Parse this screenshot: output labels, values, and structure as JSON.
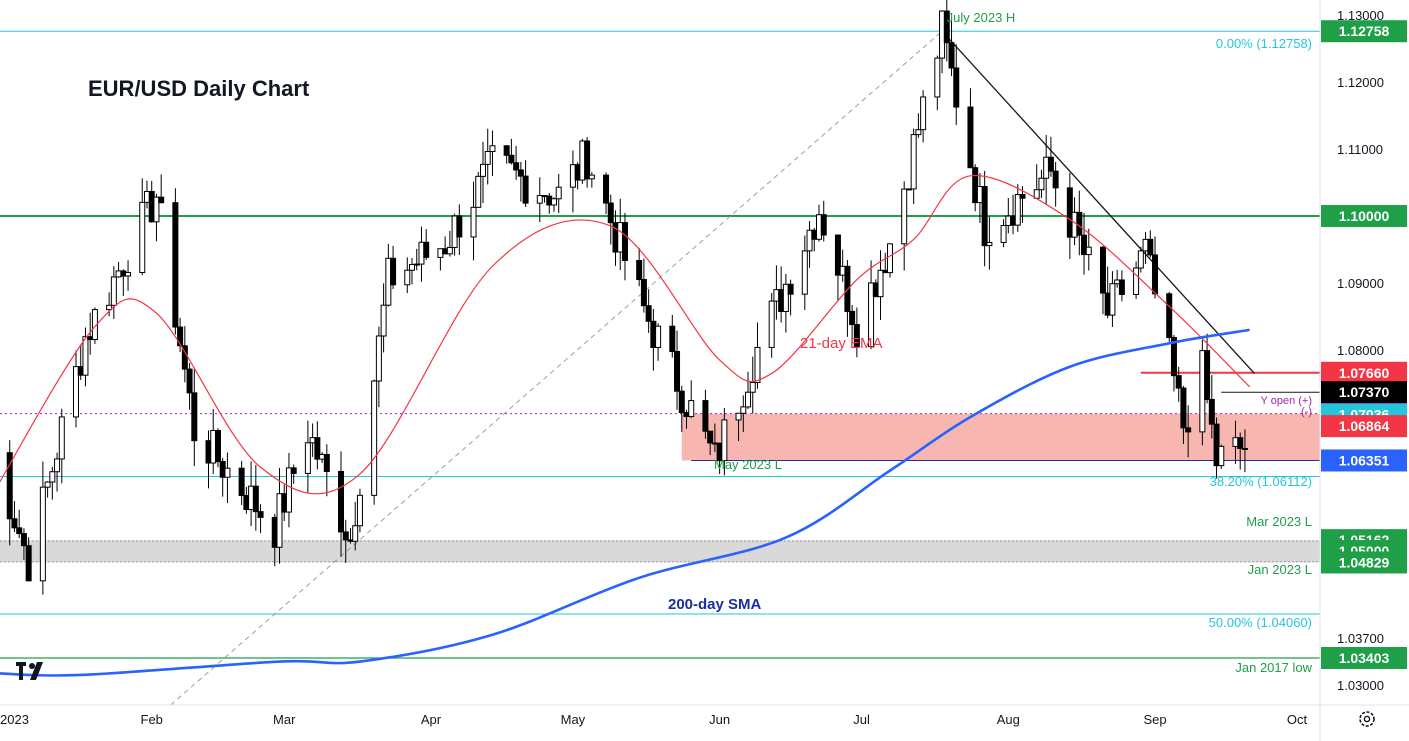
{
  "chart_data": {
    "type": "candlestick",
    "title": "EUR/USD Daily Chart",
    "y_range": [
      1.026,
      1.131
    ],
    "x_ticks": [
      "2023",
      "Feb",
      "Mar",
      "Apr",
      "May",
      "Jun",
      "Jul",
      "Aug",
      "Sep",
      "Oct"
    ],
    "x_start": "2022-12-29",
    "x_end": "2023-10-03",
    "y_ticks": [
      1.13,
      1.12,
      1.11,
      1.09,
      1.08,
      1.037,
      1.03
    ],
    "y_tick_labels": [
      "1.13000",
      "1.12000",
      "1.11000",
      "1.09000",
      "1.08000",
      "1.03700",
      "1.03000"
    ],
    "price_tags": [
      {
        "label": "1.12758",
        "value": 1.12758,
        "color": "#1e9f48"
      },
      {
        "label": "1.10000",
        "value": 1.1,
        "color": "#1e9f48"
      },
      {
        "label": "1.07660",
        "value": 1.0766,
        "color": "#f23645"
      },
      {
        "label": "1.07370",
        "value": 1.0737,
        "color": "#000000"
      },
      {
        "label": "1.07046",
        "value": 1.07046,
        "color": "#9c27b0"
      },
      {
        "label": "1.07036",
        "value": 1.07036,
        "color": "#26c6da"
      },
      {
        "label": "1.06864",
        "value": 1.06864,
        "color": "#f23645"
      },
      {
        "label": "1.06351",
        "value": 1.06351,
        "color": "#2962ff"
      },
      {
        "label": "1.05162",
        "value": 1.05162,
        "color": "#1e9f48"
      },
      {
        "label": "1.05000",
        "value": 1.05,
        "color": "#1e9f48"
      },
      {
        "label": "1.04829",
        "value": 1.04829,
        "color": "#1e9f48"
      },
      {
        "label": "1.03403",
        "value": 1.03403,
        "color": "#1e9f48"
      }
    ],
    "annotations": {
      "july_high": "July 2023 H",
      "fib_0": "0.00% (1.12758)",
      "fib_382": "38.20% (1.06112)",
      "fib_50": "50.00% (1.04060)",
      "may_low": "May 2023 L",
      "mar_low": "Mar 2023 L",
      "jan_low": "Jan 2023 L",
      "jan2017": "Jan 2017 low",
      "ema_label": "21-day EMA",
      "sma_label": "200-day SMA",
      "y_open_up": "Y open (+)",
      "y_open_down": "(-)"
    },
    "levels": {
      "fib_0": 1.12758,
      "fib_382": 1.06112,
      "fib_50": 1.0406,
      "resistance_green": 1.1,
      "jan2017_low": 1.03403,
      "year_open": 1.0705,
      "red_resistance": 1.0766,
      "support_zone": [
        1.0635,
        1.0705
      ],
      "gray_zone": [
        1.0483,
        1.0516
      ]
    },
    "colors": {
      "up_candle": "#ffffff",
      "down_candle": "#000000",
      "ema": "#f23645",
      "sma": "#2962ff",
      "support_zone": "#f7a9a3",
      "gray_zone": "#d9d9d9",
      "fib": "#26c6da",
      "green_level": "#1e9f48"
    },
    "ohlc_keypoints": [
      [
        "2022-12-29",
        1.0665
      ],
      [
        "2023-01-06",
        1.0485
      ],
      [
        "2023-01-18",
        1.082
      ],
      [
        "2023-02-02",
        1.1032
      ],
      [
        "2023-02-10",
        1.068
      ],
      [
        "2023-02-27",
        1.0535
      ],
      [
        "2023-03-06",
        1.068
      ],
      [
        "2023-03-15",
        1.0518
      ],
      [
        "2023-03-23",
        1.0905
      ],
      [
        "2023-04-04",
        1.096
      ],
      [
        "2023-04-14",
        1.1075
      ],
      [
        "2023-04-28",
        1.103
      ],
      [
        "2023-05-04",
        1.109
      ],
      [
        "2023-05-16",
        1.086
      ],
      [
        "2023-05-31",
        1.0635
      ],
      [
        "2023-06-08",
        1.0785
      ],
      [
        "2023-06-22",
        1.1012
      ],
      [
        "2023-06-30",
        1.084
      ],
      [
        "2023-07-07",
        1.096
      ],
      [
        "2023-07-18",
        1.12758
      ],
      [
        "2023-07-27",
        1.0985
      ],
      [
        "2023-08-10",
        1.1065
      ],
      [
        "2023-08-22",
        1.0855
      ],
      [
        "2023-08-30",
        1.0945
      ],
      [
        "2023-09-07",
        1.0688
      ],
      [
        "2023-09-11",
        1.0766
      ],
      [
        "2023-09-14",
        1.0635
      ],
      [
        "2023-09-21",
        1.066
      ]
    ],
    "ema21_keypoints": [
      [
        "2022-12-29",
        1.058
      ],
      [
        "2023-01-20",
        1.0835
      ],
      [
        "2023-02-02",
        1.0855
      ],
      [
        "2023-02-24",
        1.0625
      ],
      [
        "2023-03-17",
        1.0615
      ],
      [
        "2023-04-14",
        1.0925
      ],
      [
        "2023-05-09",
        1.0985
      ],
      [
        "2023-06-01",
        1.0785
      ],
      [
        "2023-06-12",
        1.0765
      ],
      [
        "2023-06-30",
        1.0905
      ],
      [
        "2023-07-12",
        1.0965
      ],
      [
        "2023-07-24",
        1.106
      ],
      [
        "2023-08-14",
        1.0995
      ],
      [
        "2023-09-04",
        1.0865
      ],
      [
        "2023-09-21",
        1.0745
      ]
    ],
    "sma200_keypoints": [
      [
        "2022-12-29",
        1.0318
      ],
      [
        "2023-01-17",
        1.0315
      ],
      [
        "2023-02-28",
        1.0335
      ],
      [
        "2023-03-17",
        1.0335
      ],
      [
        "2023-04-14",
        1.0375
      ],
      [
        "2023-05-15",
        1.046
      ],
      [
        "2023-06-15",
        1.052
      ],
      [
        "2023-07-07",
        1.062
      ],
      [
        "2023-07-24",
        1.07
      ],
      [
        "2023-08-14",
        1.0775
      ],
      [
        "2023-09-04",
        1.081
      ],
      [
        "2023-09-21",
        1.083
      ]
    ]
  }
}
